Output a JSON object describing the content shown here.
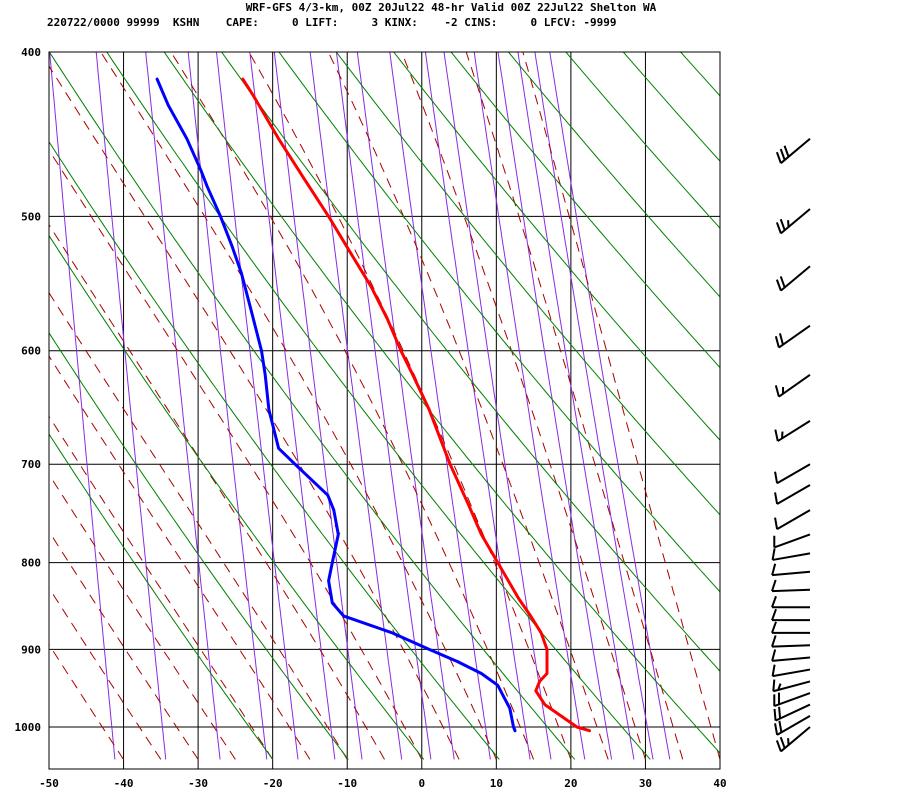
{
  "header": {
    "title": "WRF-GFS 4/3-km, 00Z 20Jul22 48-hr Valid 00Z 22Jul22 Shelton WA",
    "subtitle": "220722/0000 99999  KSHN    CAPE:     0 LIFT:     3 KINX:    -2 CINS:     0 LFCV: -9999"
  },
  "colors": {
    "temperature": "#ff0000",
    "dewpoint": "#0000ff",
    "dry_adiabat": "#008000",
    "moist_adiabat": "#aa0000",
    "mixing_ratio": "#8a2be2",
    "grid": "#000000",
    "barb": "#000000"
  },
  "chart_data": {
    "type": "line",
    "skewed": true,
    "pressure_axis": "log",
    "x_ticks": [
      "-50",
      "-40",
      "-30",
      "-20",
      "-10",
      "0",
      "10",
      "20",
      "30",
      "40"
    ],
    "x_range": [
      -50,
      40
    ],
    "y_ticks": [
      "400",
      "500",
      "600",
      "700",
      "800",
      "900",
      "1000"
    ],
    "y_range": [
      400,
      1045
    ],
    "grid": true,
    "series": [
      {
        "key": "temperature",
        "points": [
          [
            1005,
            22.5
          ],
          [
            1000,
            20.8
          ],
          [
            970,
            16.5
          ],
          [
            952,
            15.3
          ],
          [
            940,
            15.8
          ],
          [
            930,
            16.8
          ],
          [
            918,
            16.8
          ],
          [
            900,
            16.8
          ],
          [
            880,
            16.0
          ],
          [
            860,
            14.6
          ],
          [
            840,
            13.0
          ],
          [
            820,
            11.6
          ],
          [
            800,
            10.2
          ],
          [
            770,
            8.0
          ],
          [
            740,
            6.3
          ],
          [
            700,
            3.8
          ],
          [
            680,
            2.7
          ],
          [
            650,
            1.0
          ],
          [
            620,
            -1.2
          ],
          [
            600,
            -2.8
          ],
          [
            575,
            -4.6
          ],
          [
            550,
            -6.8
          ],
          [
            525,
            -9.6
          ],
          [
            500,
            -12.5
          ],
          [
            475,
            -15.8
          ],
          [
            450,
            -19.2
          ],
          [
            425,
            -22.5
          ],
          [
            415,
            -24.0
          ]
        ]
      },
      {
        "key": "dewpoint",
        "points": [
          [
            1005,
            12.5
          ],
          [
            1000,
            12.3
          ],
          [
            975,
            11.8
          ],
          [
            960,
            11.0
          ],
          [
            945,
            10.2
          ],
          [
            930,
            8.0
          ],
          [
            915,
            4.8
          ],
          [
            900,
            1.0
          ],
          [
            880,
            -4.0
          ],
          [
            860,
            -10.5
          ],
          [
            845,
            -12.0
          ],
          [
            820,
            -12.5
          ],
          [
            800,
            -12.0
          ],
          [
            770,
            -11.2
          ],
          [
            745,
            -11.8
          ],
          [
            730,
            -12.6
          ],
          [
            700,
            -17.0
          ],
          [
            685,
            -19.2
          ],
          [
            650,
            -20.5
          ],
          [
            620,
            -21.0
          ],
          [
            600,
            -21.5
          ],
          [
            570,
            -22.8
          ],
          [
            540,
            -24.2
          ],
          [
            520,
            -25.5
          ],
          [
            500,
            -27.0
          ],
          [
            480,
            -28.8
          ],
          [
            470,
            -29.6
          ],
          [
            450,
            -31.5
          ],
          [
            430,
            -34.0
          ],
          [
            415,
            -35.5
          ]
        ]
      }
    ],
    "wind_barbs": [
      {
        "p": 1000,
        "speed_kt": 25,
        "dir_deg": 230
      },
      {
        "p": 985,
        "speed_kt": 20,
        "dir_deg": 240
      },
      {
        "p": 970,
        "speed_kt": 20,
        "dir_deg": 245
      },
      {
        "p": 955,
        "speed_kt": 20,
        "dir_deg": 250
      },
      {
        "p": 940,
        "speed_kt": 15,
        "dir_deg": 255
      },
      {
        "p": 925,
        "speed_kt": 10,
        "dir_deg": 260
      },
      {
        "p": 910,
        "speed_kt": 10,
        "dir_deg": 265
      },
      {
        "p": 895,
        "speed_kt": 10,
        "dir_deg": 268
      },
      {
        "p": 880,
        "speed_kt": 10,
        "dir_deg": 270
      },
      {
        "p": 865,
        "speed_kt": 10,
        "dir_deg": 270
      },
      {
        "p": 850,
        "speed_kt": 10,
        "dir_deg": 270
      },
      {
        "p": 830,
        "speed_kt": 10,
        "dir_deg": 268
      },
      {
        "p": 810,
        "speed_kt": 10,
        "dir_deg": 265
      },
      {
        "p": 790,
        "speed_kt": 10,
        "dir_deg": 260
      },
      {
        "p": 770,
        "speed_kt": 10,
        "dir_deg": 250
      },
      {
        "p": 745,
        "speed_kt": 10,
        "dir_deg": 240
      },
      {
        "p": 720,
        "speed_kt": 10,
        "dir_deg": 240
      },
      {
        "p": 700,
        "speed_kt": 10,
        "dir_deg": 240
      },
      {
        "p": 660,
        "speed_kt": 15,
        "dir_deg": 238
      },
      {
        "p": 620,
        "speed_kt": 15,
        "dir_deg": 235
      },
      {
        "p": 580,
        "speed_kt": 20,
        "dir_deg": 235
      },
      {
        "p": 535,
        "speed_kt": 20,
        "dir_deg": 230
      },
      {
        "p": 495,
        "speed_kt": 25,
        "dir_deg": 230
      },
      {
        "p": 450,
        "speed_kt": 30,
        "dir_deg": 230
      }
    ]
  }
}
